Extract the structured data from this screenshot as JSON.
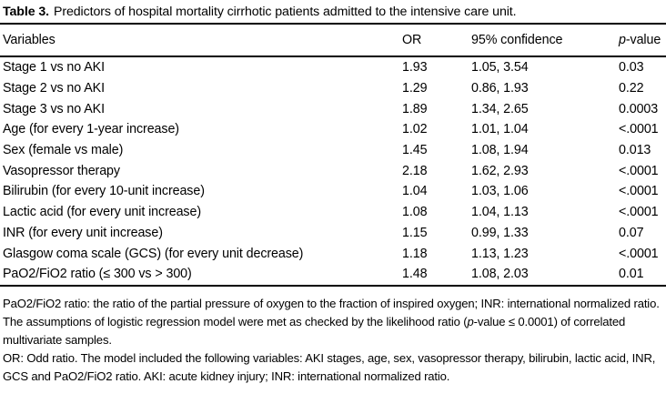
{
  "caption": {
    "label": "Table 3.",
    "text": "Predictors of hospital mortality cirrhotic patients admitted to the intensive care unit."
  },
  "table": {
    "columns": [
      "Variables",
      "OR",
      "95% confidence",
      "p-value"
    ],
    "rows": [
      {
        "variable": "Stage 1 vs no AKI",
        "or": "1.93",
        "ci": "1.05, 3.54",
        "p": "0.03"
      },
      {
        "variable": "Stage 2 vs no AKI",
        "or": "1.29",
        "ci": "0.86, 1.93",
        "p": "0.22"
      },
      {
        "variable": "Stage 3 vs no AKI",
        "or": "1.89",
        "ci": "1.34, 2.65",
        "p": "0.0003"
      },
      {
        "variable": "Age (for every 1-year increase)",
        "or": "1.02",
        "ci": "1.01, 1.04",
        "p": "<.0001"
      },
      {
        "variable": "Sex (female vs male)",
        "or": "1.45",
        "ci": "1.08, 1.94",
        "p": "0.013"
      },
      {
        "variable": "Vasopressor therapy",
        "or": "2.18",
        "ci": "1.62, 2.93",
        "p": "<.0001"
      },
      {
        "variable": "Bilirubin (for every 10-unit increase)",
        "or": "1.04",
        "ci": "1.03, 1.06",
        "p": "<.0001"
      },
      {
        "variable": "Lactic acid (for every unit increase)",
        "or": "1.08",
        "ci": "1.04, 1.13",
        "p": "<.0001"
      },
      {
        "variable": "INR (for every unit increase)",
        "or": "1.15",
        "ci": "0.99, 1.33",
        "p": "0.07"
      },
      {
        "variable": "Glasgow coma scale (GCS) (for every unit decrease)",
        "or": "1.18",
        "ci": "1.13, 1.23",
        "p": "<.0001"
      },
      {
        "variable": "PaO2/FiO2 ratio (≤ 300 vs > 300)",
        "or": "1.48",
        "ci": "1.08, 2.03",
        "p": "0.01"
      }
    ]
  },
  "footnotes": [
    "PaO2/FiO2 ratio: the ratio of the partial pressure of oxygen to the fraction of inspired oxygen; INR: international normalized ratio.",
    "The assumptions of logistic regression model were met as checked by the likelihood ratio (p-value ≤ 0.0001) of correlated multivariate samples.",
    "OR: Odd ratio. The model included the following variables: AKI stages, age, sex, vasopressor therapy, bilirubin, lactic acid, INR, GCS and PaO2/FiO2 ratio. AKI: acute kidney injury; INR: international normalized ratio."
  ],
  "colors": {
    "text": "#000000",
    "background": "#ffffff",
    "rule": "#000000"
  }
}
